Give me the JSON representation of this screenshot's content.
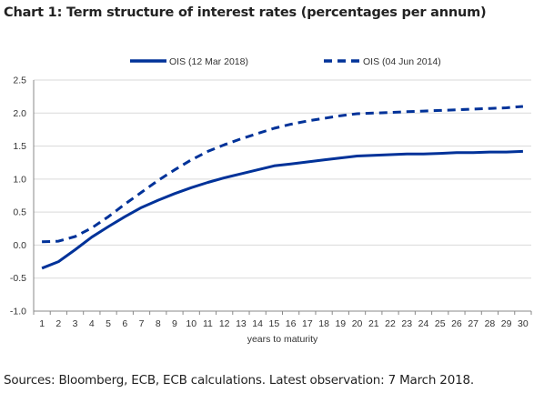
{
  "title": "Chart 1: Term structure of interest rates (percentages per annum)",
  "source": "Sources: Bloomberg, ECB, ECB calculations. Latest observation: 7 March 2018.",
  "colors": {
    "series": "#003299",
    "grid": "#d9d9d9",
    "axis": "#888888",
    "text": "#333333"
  },
  "chart_data": {
    "type": "line",
    "xlabel": "years to maturity",
    "ylabel": "",
    "x": [
      1,
      2,
      3,
      4,
      5,
      6,
      7,
      8,
      9,
      10,
      11,
      12,
      13,
      14,
      15,
      16,
      17,
      18,
      19,
      20,
      21,
      22,
      23,
      24,
      25,
      26,
      27,
      28,
      29,
      30
    ],
    "ylim": [
      -1.0,
      2.5
    ],
    "yticks": [
      -1.0,
      -0.5,
      0.0,
      0.5,
      1.0,
      1.5,
      2.0,
      2.5
    ],
    "ytick_labels": [
      "-1.0",
      "-0.5",
      "0.0",
      "0.5",
      "1.0",
      "1.5",
      "2.0",
      "2.5"
    ],
    "grid": true,
    "legend_position": "top",
    "series": [
      {
        "name": "OIS (12 Mar 2018)",
        "style": "solid",
        "values": [
          -0.35,
          -0.25,
          -0.07,
          0.12,
          0.28,
          0.43,
          0.57,
          0.68,
          0.78,
          0.87,
          0.95,
          1.02,
          1.08,
          1.14,
          1.2,
          1.23,
          1.26,
          1.29,
          1.32,
          1.35,
          1.36,
          1.37,
          1.38,
          1.38,
          1.39,
          1.4,
          1.4,
          1.41,
          1.41,
          1.42
        ]
      },
      {
        "name": "OIS (04 Jun 2014)",
        "style": "dashed",
        "values": [
          0.05,
          0.06,
          0.13,
          0.26,
          0.43,
          0.62,
          0.8,
          0.98,
          1.14,
          1.29,
          1.42,
          1.52,
          1.61,
          1.69,
          1.77,
          1.83,
          1.88,
          1.92,
          1.96,
          1.99,
          2.0,
          2.01,
          2.02,
          2.03,
          2.04,
          2.05,
          2.06,
          2.07,
          2.08,
          2.1
        ]
      }
    ]
  }
}
